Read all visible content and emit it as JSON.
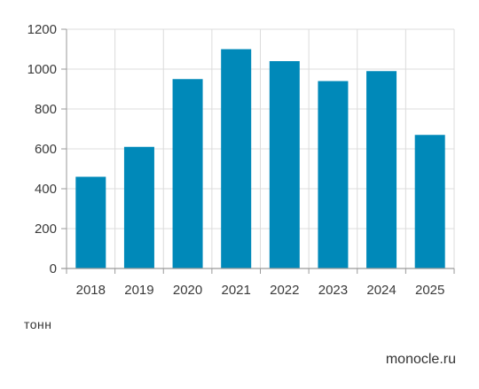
{
  "chart_data": {
    "type": "bar",
    "categories": [
      "2018",
      "2019",
      "2020",
      "2021",
      "2022",
      "2023",
      "2024",
      "2025"
    ],
    "values": [
      460,
      610,
      950,
      1100,
      1040,
      940,
      990,
      670
    ],
    "title": "",
    "xlabel": "",
    "ylabel": "",
    "ylim": [
      0,
      1200
    ],
    "yticks": [
      0,
      200,
      400,
      600,
      800,
      1000,
      1200
    ],
    "grid": true,
    "bar_color": "#0089b9",
    "grid_color": "#dcdcdc",
    "axis_color": "#9a9a9a"
  },
  "footer": {
    "unit": "тонн",
    "source": "monocle.ru"
  }
}
